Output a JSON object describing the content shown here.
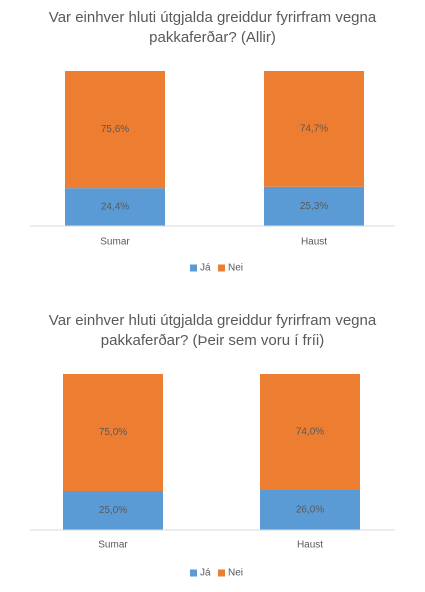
{
  "chart_data": [
    {
      "type": "stacked_bar",
      "title": "Var einhver hluti útgjalda greiddur fyrirfram vegna pakkaferðar? (Allir)",
      "categories": [
        "Sumar",
        "Haust"
      ],
      "series": [
        {
          "name": "Já",
          "color": "#5b9bd5",
          "values": [
            24.4,
            25.3
          ],
          "value_labels": [
            "24,4%",
            "25,3%"
          ]
        },
        {
          "name": "Nei",
          "color": "#ed7d31",
          "values": [
            75.6,
            74.7
          ],
          "value_labels": [
            "75,6%",
            "74,7%"
          ]
        }
      ],
      "legend": "bottom"
    },
    {
      "type": "stacked_bar",
      "title": "Var einhver hluti útgjalda greiddur fyrirfram vegna pakkaferðar? (Þeir sem voru í fríi)",
      "categories": [
        "Sumar",
        "Haust"
      ],
      "series": [
        {
          "name": "Já",
          "color": "#5b9bd5",
          "values": [
            25.0,
            26.0
          ],
          "value_labels": [
            "25,0%",
            "26,0%"
          ]
        },
        {
          "name": "Nei",
          "color": "#ed7d31",
          "values": [
            75.0,
            74.0
          ],
          "value_labels": [
            "75,0%",
            "74,0%"
          ]
        }
      ],
      "legend": "bottom"
    }
  ]
}
